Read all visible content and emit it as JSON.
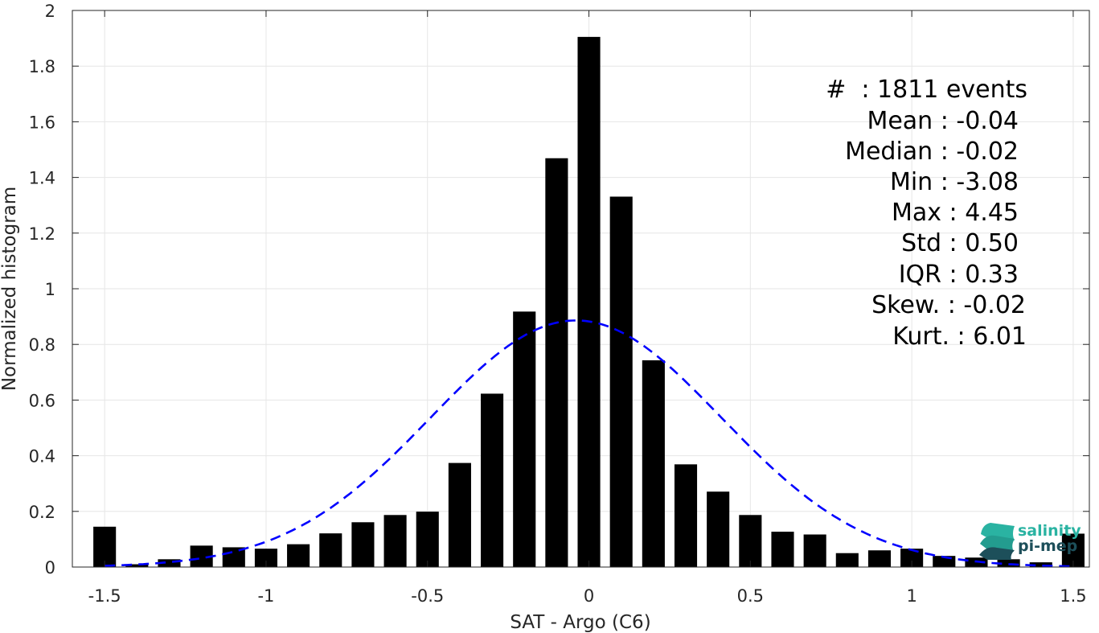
{
  "colors": {
    "bars": "#000000",
    "fit_curve": "#0000ff",
    "grid": "#e6e6e6",
    "axis": "#262626",
    "logo_teal": "#2ab3a2",
    "logo_dark": "#1d4f5a"
  },
  "chart_data": {
    "type": "bar",
    "xlabel": "SAT - Argo (C6)",
    "ylabel": "Normalized histogram",
    "xlim": [
      -1.6,
      1.55
    ],
    "ylim": [
      0,
      2
    ],
    "grid": true,
    "x_ticks": [
      -1.5,
      -1,
      -0.5,
      0,
      0.5,
      1,
      1.5
    ],
    "x_tick_labels": [
      "-1.5",
      "-1",
      "-0.5",
      "0",
      "0.5",
      "1",
      "1.5"
    ],
    "y_ticks": [
      0,
      0.2,
      0.4,
      0.6,
      0.8,
      1,
      1.2,
      1.4,
      1.6,
      1.8,
      2
    ],
    "y_tick_labels": [
      "0",
      "0.2",
      "0.4",
      "0.6",
      "0.8",
      "1",
      "1.2",
      "1.4",
      "1.6",
      "1.8",
      "2"
    ],
    "bar_width": 0.07,
    "bins": [
      {
        "x": -1.5,
        "y": 0.145
      },
      {
        "x": -1.4,
        "y": 0.01
      },
      {
        "x": -1.3,
        "y": 0.028
      },
      {
        "x": -1.2,
        "y": 0.077
      },
      {
        "x": -1.1,
        "y": 0.071
      },
      {
        "x": -1.0,
        "y": 0.066
      },
      {
        "x": -0.9,
        "y": 0.082
      },
      {
        "x": -0.8,
        "y": 0.121
      },
      {
        "x": -0.7,
        "y": 0.161
      },
      {
        "x": -0.6,
        "y": 0.187
      },
      {
        "x": -0.5,
        "y": 0.199
      },
      {
        "x": -0.4,
        "y": 0.374
      },
      {
        "x": -0.3,
        "y": 0.623
      },
      {
        "x": -0.2,
        "y": 0.918
      },
      {
        "x": -0.1,
        "y": 1.469
      },
      {
        "x": 0.0,
        "y": 1.905
      },
      {
        "x": 0.1,
        "y": 1.331
      },
      {
        "x": 0.2,
        "y": 0.743
      },
      {
        "x": 0.3,
        "y": 0.369
      },
      {
        "x": 0.4,
        "y": 0.271
      },
      {
        "x": 0.5,
        "y": 0.187
      },
      {
        "x": 0.6,
        "y": 0.127
      },
      {
        "x": 0.7,
        "y": 0.117
      },
      {
        "x": 0.8,
        "y": 0.05
      },
      {
        "x": 0.9,
        "y": 0.06
      },
      {
        "x": 1.0,
        "y": 0.066
      },
      {
        "x": 1.1,
        "y": 0.04
      },
      {
        "x": 1.2,
        "y": 0.034
      },
      {
        "x": 1.3,
        "y": 0.028
      },
      {
        "x": 1.4,
        "y": 0.017
      },
      {
        "x": 1.5,
        "y": 0.12
      }
    ],
    "fit": {
      "type": "gaussian",
      "style": "dashed",
      "mean": -0.04,
      "std": 0.45,
      "peak": 0.886,
      "x_range": [
        -1.5,
        1.5
      ]
    },
    "annotations": [
      "#  : 1811 events",
      "Mean : -0.04",
      "Median : -0.02",
      "Min : -3.08",
      "Max : 4.45",
      "Std : 0.50",
      "IQR : 0.33",
      "Skew. : -0.02",
      "Kurt. : 6.01"
    ]
  },
  "logo": {
    "line1": "salinity",
    "line2": "pi-mep",
    "icon": "wave-stack-icon"
  }
}
